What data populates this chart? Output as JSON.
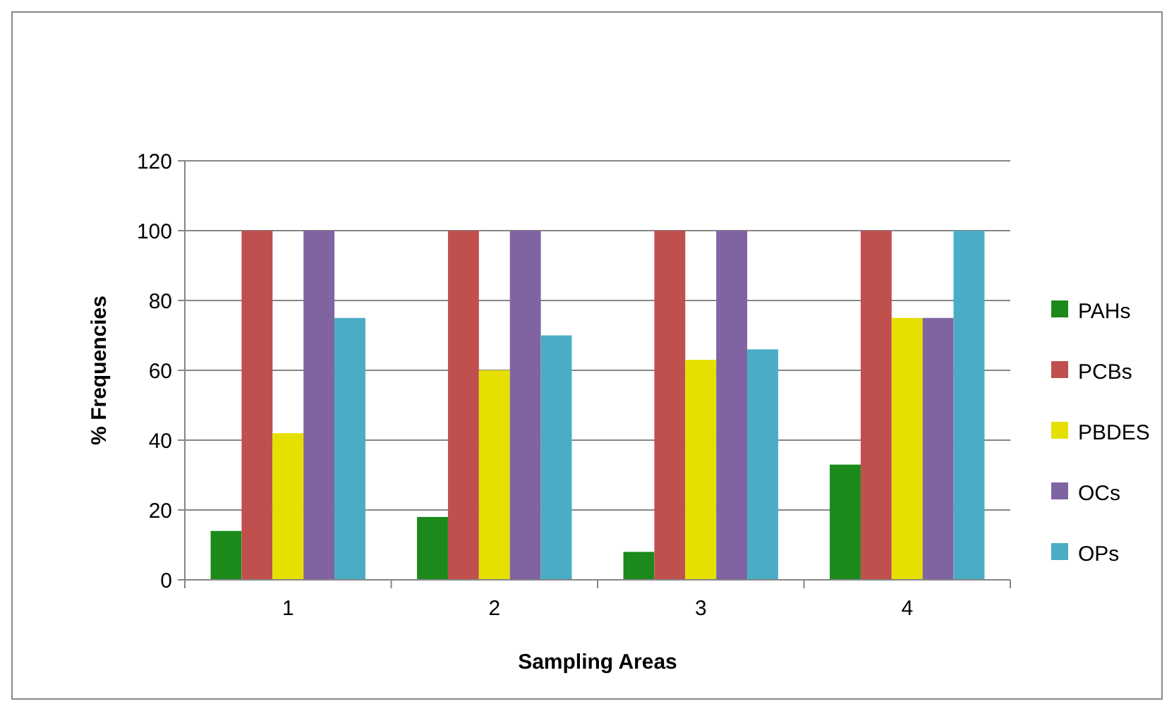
{
  "chart_data": {
    "type": "bar",
    "xlabel": "Sampling Areas",
    "ylabel": "% Frequencies",
    "categories": [
      "1",
      "2",
      "3",
      "4"
    ],
    "series": [
      {
        "name": "PAHs",
        "color": "#1b8a1b",
        "values": [
          14,
          18,
          8,
          33
        ]
      },
      {
        "name": "PCBs",
        "color": "#c0504d",
        "values": [
          100,
          100,
          100,
          100
        ]
      },
      {
        "name": "PBDES",
        "color": "#e6e000",
        "values": [
          42,
          60,
          63,
          75
        ]
      },
      {
        "name": "OCs",
        "color": "#8064a2",
        "values": [
          100,
          100,
          100,
          75
        ]
      },
      {
        "name": "OPs",
        "color": "#4bacc6",
        "values": [
          75,
          70,
          66,
          100
        ]
      }
    ],
    "ylim": [
      0,
      120
    ],
    "yticks": [
      0,
      20,
      40,
      60,
      80,
      100,
      120
    ],
    "grid": "y",
    "legend": "right"
  }
}
